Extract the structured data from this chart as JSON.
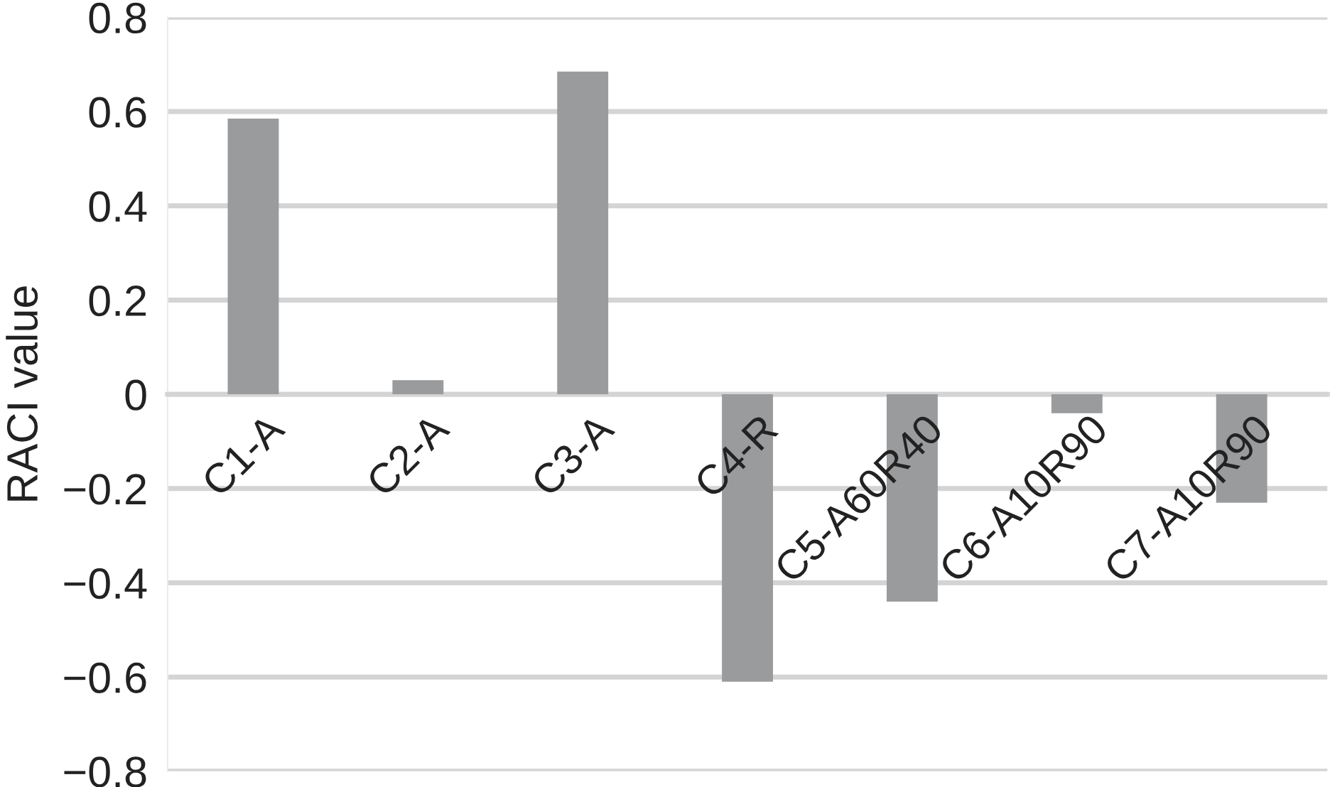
{
  "chart_data": {
    "type": "bar",
    "ylabel": "RACI value",
    "categories": [
      "C1-A",
      "C2-A",
      "C3-A",
      "C4-R",
      "C5-A60R40",
      "C6-A10R90",
      "C7-A10R90"
    ],
    "values": [
      0.585,
      0.03,
      0.685,
      -0.61,
      -0.44,
      -0.04,
      -0.23
    ],
    "color": "#999b9d",
    "ylim": [
      -0.8,
      0.8
    ],
    "yticks": [
      0.8,
      0.6,
      0.4,
      0.2,
      0,
      {
        "value": -0.2,
        "label": "−0.2"
      },
      {
        "value": -0.4,
        "label": "−0.4"
      },
      {
        "value": -0.6,
        "label": "−0.6"
      },
      {
        "value": -0.8,
        "label": "−0.8"
      }
    ],
    "grid": "y"
  }
}
